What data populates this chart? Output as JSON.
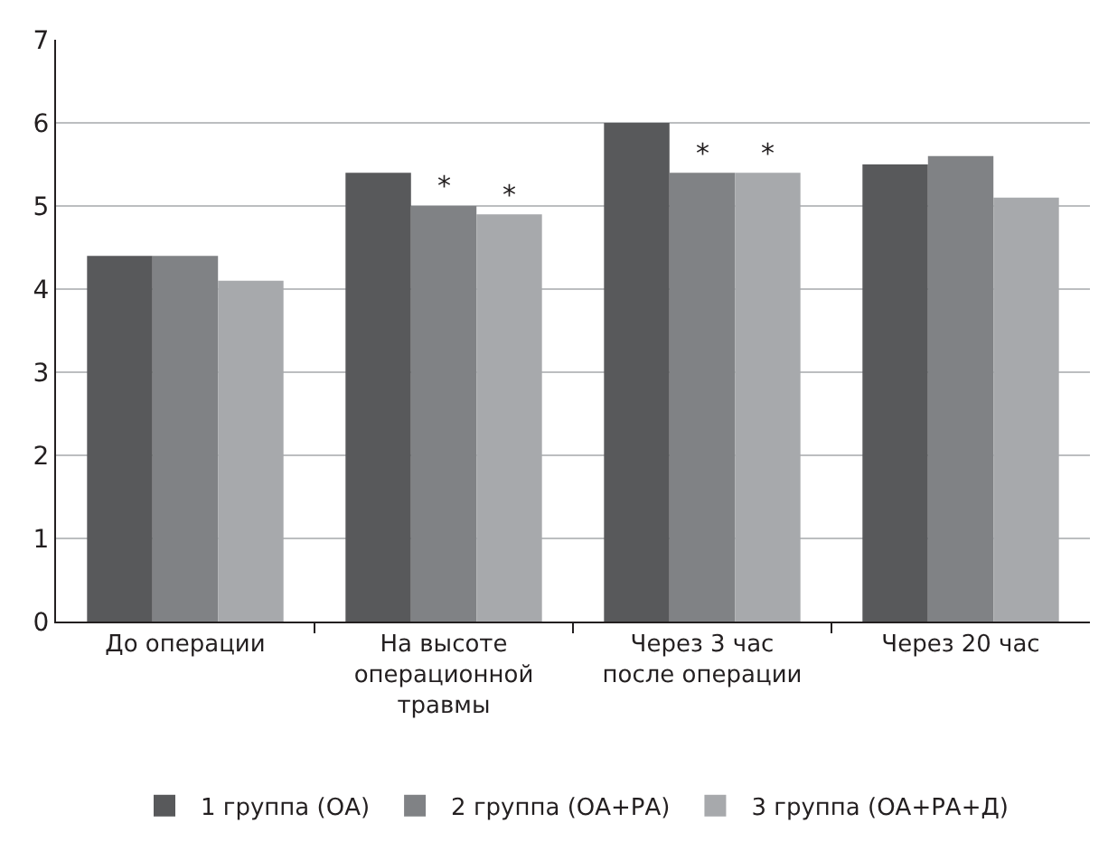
{
  "chart_data": {
    "type": "bar",
    "categories": [
      "До операции",
      "На высоте\nоперационной\nтравмы",
      "Через 3 час\nпосле операции",
      "Через 20 час"
    ],
    "series": [
      {
        "name": "1 группа (ОА)",
        "color": "#58595b",
        "values": [
          4.4,
          5.4,
          6.0,
          5.5
        ]
      },
      {
        "name": "2 группа (ОА+РА)",
        "color": "#808285",
        "values": [
          4.4,
          5.0,
          5.4,
          5.6
        ]
      },
      {
        "name": "3 группа (ОА+РА+Д)",
        "color": "#a7a9ac",
        "values": [
          4.1,
          4.9,
          5.4,
          5.1
        ]
      }
    ],
    "annotations": [
      {
        "text": "*",
        "x": "На высоте\nоперационной\nтравмы",
        "y": 5.0
      },
      {
        "text": "*",
        "x": "На высоте\nоперационной\nтравмы",
        "y": 4.9
      },
      {
        "text": "*",
        "x": "Через 3 час\nпосле операции",
        "y": 5.4
      },
      {
        "text": "*",
        "x": "Через 3 час\nпосле операции",
        "y": 5.4
      }
    ],
    "ylim": [
      0,
      7
    ],
    "yticks": [
      0,
      1,
      2,
      3,
      4,
      5,
      6,
      7
    ],
    "grid": "y",
    "legend": "bottom"
  }
}
